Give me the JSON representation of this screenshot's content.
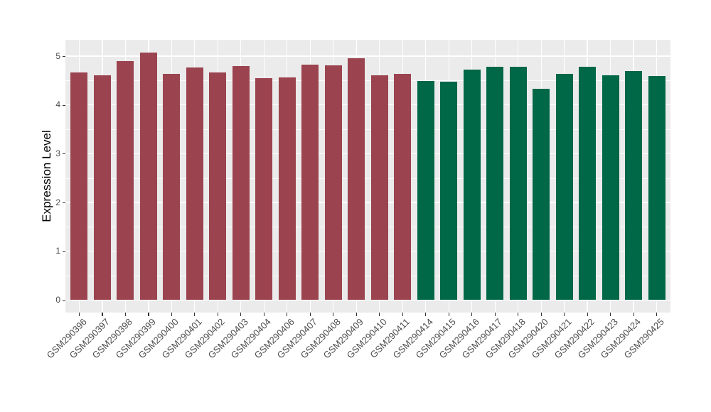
{
  "chart_data": {
    "type": "bar",
    "title": "",
    "xlabel": "",
    "ylabel": "Expression Level",
    "legend_position": "none",
    "grid": true,
    "categories": [
      "GSM290396",
      "GSM290397",
      "GSM290398",
      "GSM290399",
      "GSM290400",
      "GSM290401",
      "GSM290402",
      "GSM290403",
      "GSM290404",
      "GSM290406",
      "GSM290407",
      "GSM290408",
      "GSM290409",
      "GSM290410",
      "GSM290411",
      "GSM290414",
      "GSM290415",
      "GSM290416",
      "GSM290417",
      "GSM290418",
      "GSM290420",
      "GSM290421",
      "GSM290422",
      "GSM290423",
      "GSM290424",
      "GSM290425"
    ],
    "values": [
      4.67,
      4.61,
      4.9,
      5.07,
      4.64,
      4.76,
      4.66,
      4.79,
      4.55,
      4.57,
      4.83,
      4.81,
      4.95,
      4.61,
      4.64,
      4.49,
      4.47,
      4.73,
      4.78,
      4.78,
      4.33,
      4.64,
      4.78,
      4.61,
      4.7,
      4.59
    ],
    "bar_colors": [
      "#9B4450",
      "#9B4450",
      "#9B4450",
      "#9B4450",
      "#9B4450",
      "#9B4450",
      "#9B4450",
      "#9B4450",
      "#9B4450",
      "#9B4450",
      "#9B4450",
      "#9B4450",
      "#9B4450",
      "#9B4450",
      "#9B4450",
      "#006747",
      "#006747",
      "#006747",
      "#006747",
      "#006747",
      "#006747",
      "#006747",
      "#006747",
      "#006747",
      "#006747",
      "#006747"
    ],
    "group_colors": {
      "group1": "#9B4450",
      "group2": "#006747"
    },
    "yticks": [
      0,
      1,
      2,
      3,
      4,
      5
    ],
    "minor_yticks": [
      0.5,
      1.5,
      2.5,
      3.5,
      4.5
    ],
    "ylim": [
      -0.25,
      5.33
    ],
    "panel_background": "#EBEBEB",
    "grid_color": "#FFFFFF",
    "axis_text_color": "#4D4D4D",
    "axis_title_color": "#000000",
    "tick_color": "#333333"
  }
}
